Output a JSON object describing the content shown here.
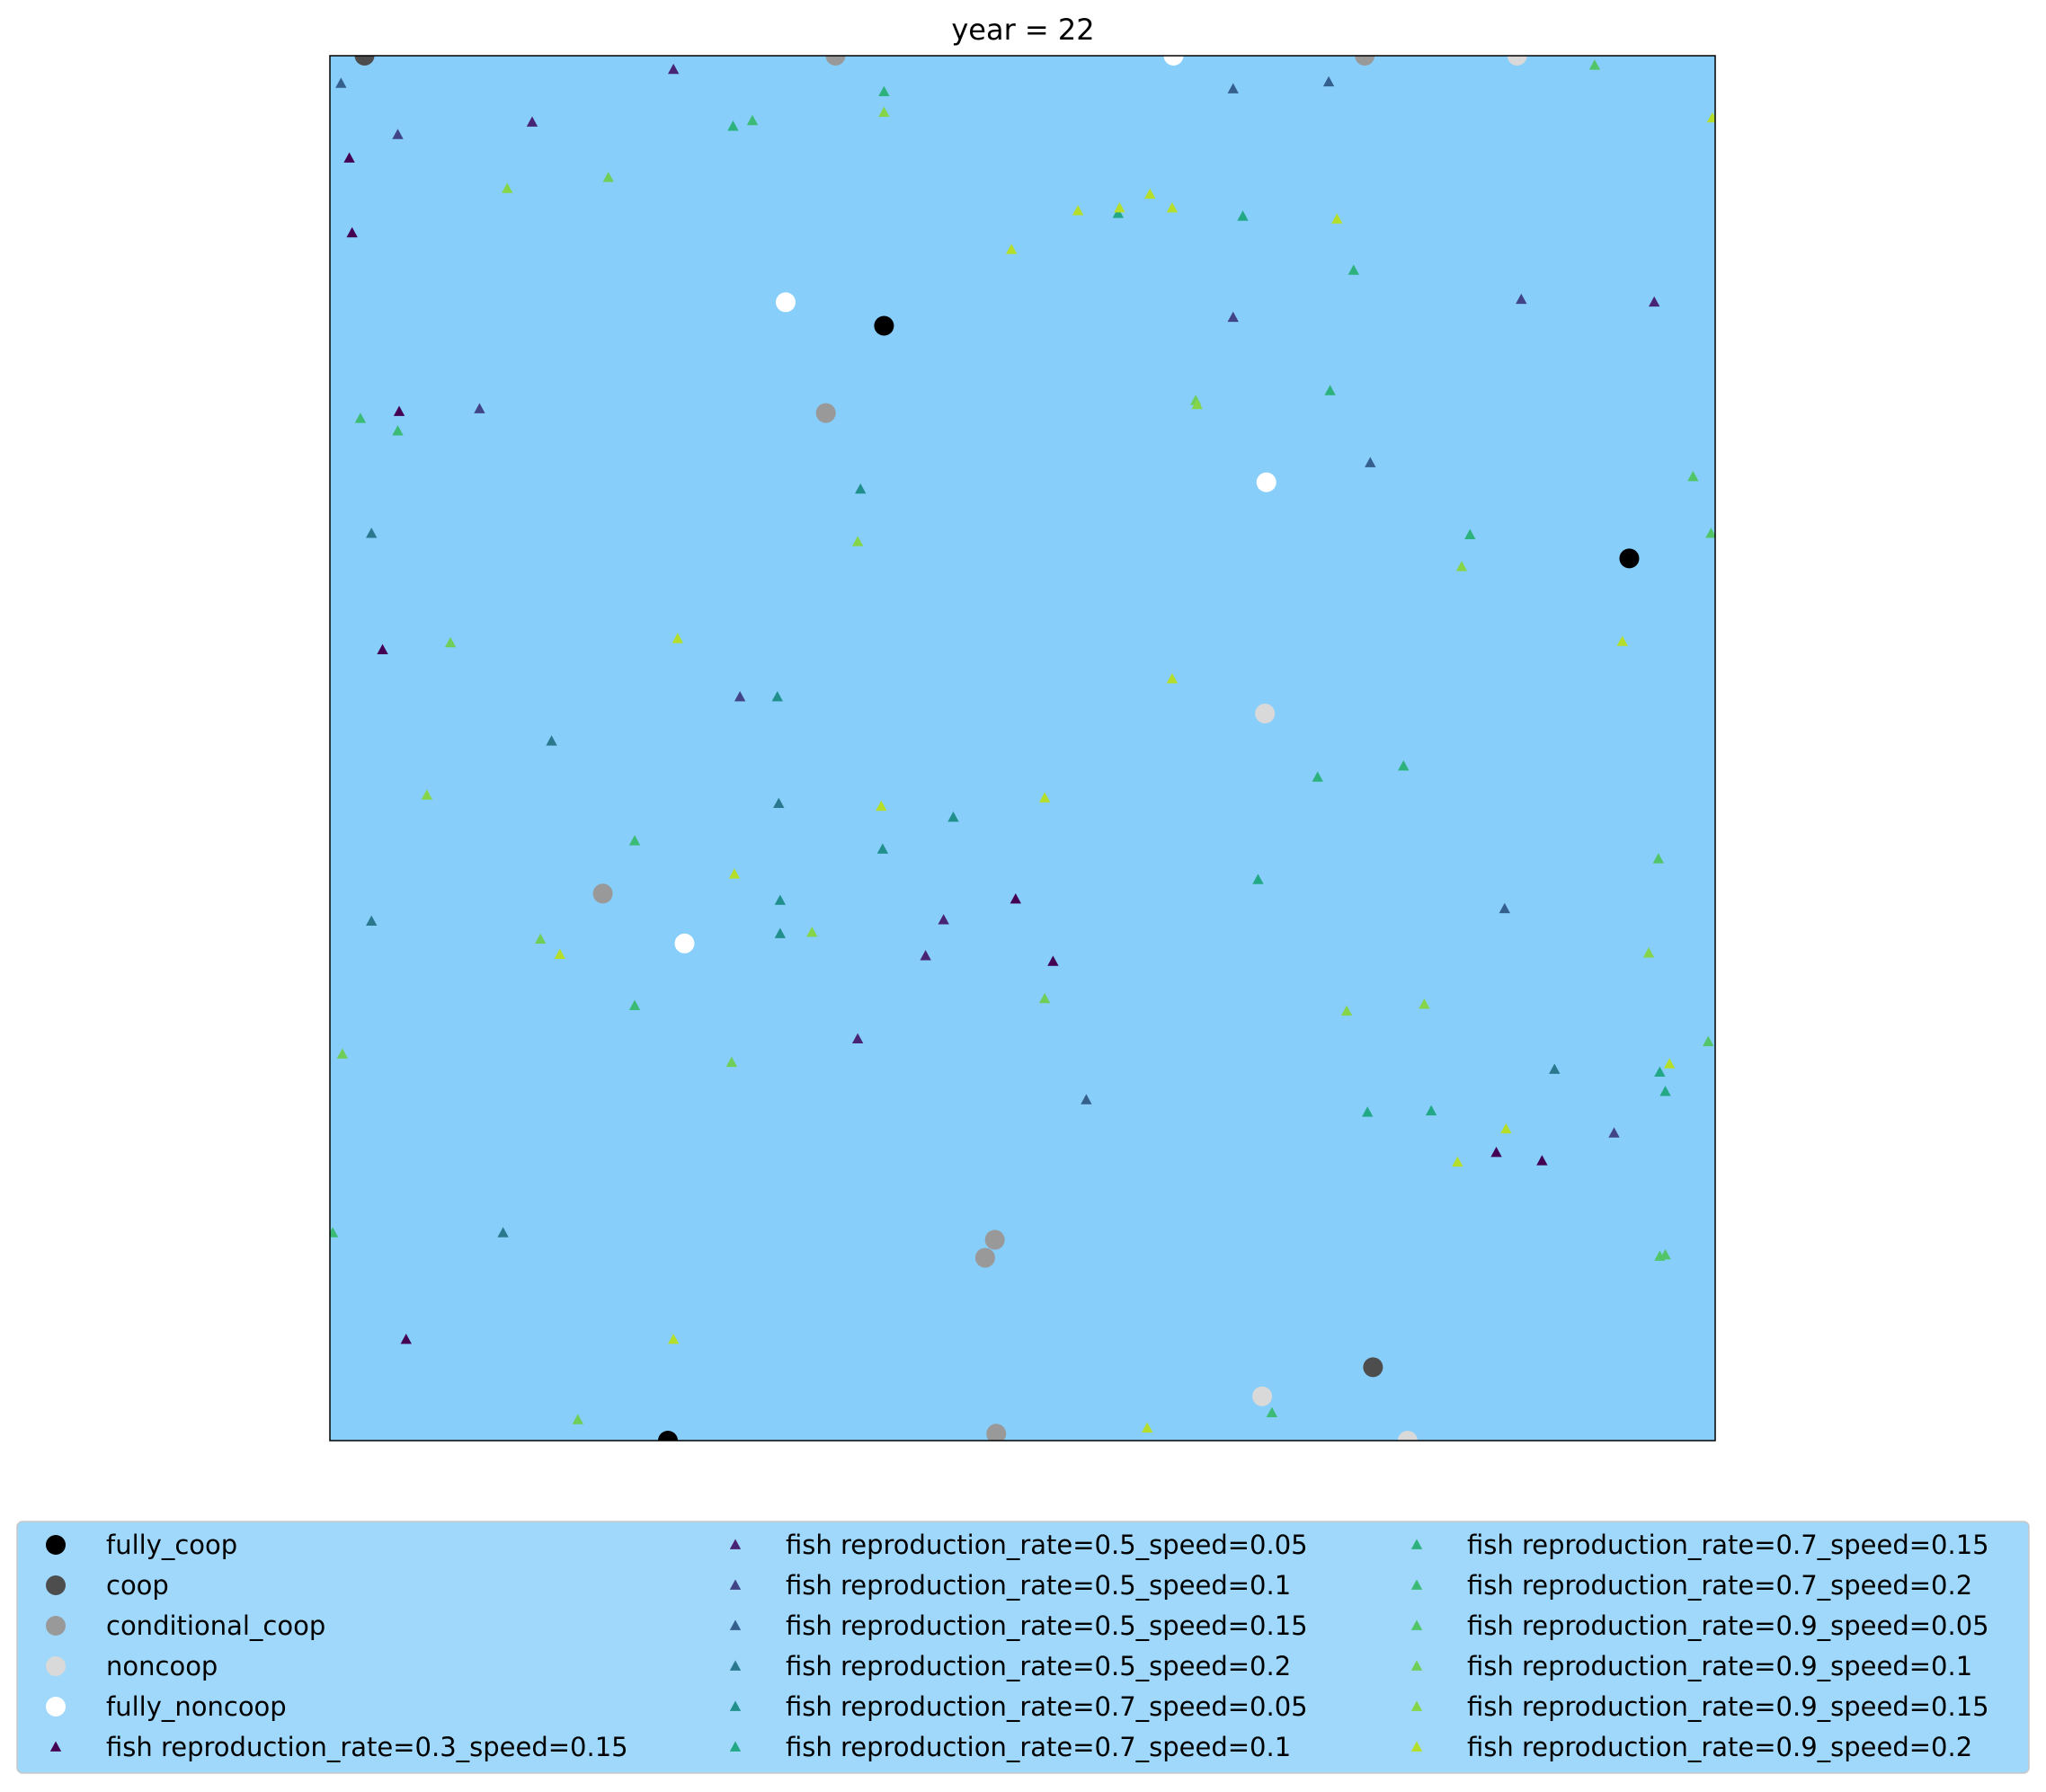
{
  "chart_data": {
    "type": "scatter",
    "title": "year = 22",
    "xlabel": "",
    "ylabel": "",
    "xlim": [
      0,
      100
    ],
    "ylim": [
      0,
      100
    ],
    "axes_ticks": false,
    "grid": false,
    "plot_background": "#87CEFA",
    "legend": {
      "placement": "bottom",
      "columns": 3,
      "background": "#87CEFA"
    },
    "series": [
      {
        "name": "fully_coop",
        "marker": "circle",
        "color": "#000000",
        "points": [
          [
            40.0,
            80.5
          ],
          [
            93.8,
            63.7
          ],
          [
            24.4,
            0.0
          ]
        ]
      },
      {
        "name": "coop",
        "marker": "circle",
        "color": "#4d4d4d",
        "points": [
          [
            2.5,
            100.0
          ],
          [
            75.3,
            5.3
          ]
        ]
      },
      {
        "name": "conditional_coop",
        "marker": "circle",
        "color": "#999999",
        "points": [
          [
            36.5,
            100.0
          ],
          [
            74.7,
            100.0
          ],
          [
            35.8,
            74.2
          ],
          [
            19.7,
            39.5
          ],
          [
            48.0,
            14.5
          ],
          [
            47.3,
            13.2
          ],
          [
            48.1,
            0.5
          ]
        ]
      },
      {
        "name": "noncoop",
        "marker": "circle",
        "color": "#d9d9d9",
        "points": [
          [
            85.7,
            100.0
          ],
          [
            67.5,
            52.5
          ],
          [
            67.3,
            3.2
          ],
          [
            77.8,
            0.0
          ]
        ]
      },
      {
        "name": "fully_noncoop",
        "marker": "circle",
        "color": "#ffffff",
        "points": [
          [
            60.9,
            100.0
          ],
          [
            32.9,
            82.2
          ],
          [
            67.6,
            69.2
          ],
          [
            25.6,
            35.9
          ]
        ]
      },
      {
        "name": "fish reproduction_rate=0.3_speed=0.15",
        "marker": "triangle",
        "color": "#440154",
        "points": [
          [
            1.4,
            92.6
          ],
          [
            1.6,
            87.2
          ],
          [
            5.0,
            74.3
          ],
          [
            3.8,
            57.1
          ],
          [
            49.5,
            39.1
          ],
          [
            52.2,
            34.6
          ],
          [
            84.2,
            20.8
          ],
          [
            87.5,
            20.2
          ],
          [
            5.5,
            7.3
          ]
        ]
      },
      {
        "name": "fish reproduction_rate=0.5_speed=0.05",
        "marker": "triangle",
        "color": "#482475",
        "points": [
          [
            24.8,
            99.0
          ],
          [
            14.6,
            95.2
          ],
          [
            95.6,
            82.2
          ],
          [
            44.3,
            37.6
          ],
          [
            43.0,
            35.0
          ],
          [
            38.1,
            29.0
          ]
        ]
      },
      {
        "name": "fish reproduction_rate=0.5_speed=0.1",
        "marker": "triangle",
        "color": "#414487",
        "points": [
          [
            4.9,
            94.3
          ],
          [
            65.2,
            81.1
          ],
          [
            10.8,
            74.5
          ],
          [
            29.6,
            53.7
          ],
          [
            86.0,
            82.4
          ],
          [
            92.7,
            22.2
          ]
        ]
      },
      {
        "name": "fish reproduction_rate=0.5_speed=0.15",
        "marker": "triangle",
        "color": "#355f8d",
        "points": [
          [
            0.8,
            98.0
          ],
          [
            65.2,
            97.6
          ],
          [
            72.1,
            98.1
          ],
          [
            75.1,
            70.6
          ],
          [
            84.8,
            38.4
          ],
          [
            54.6,
            24.6
          ]
        ]
      },
      {
        "name": "fish reproduction_rate=0.5_speed=0.2",
        "marker": "triangle",
        "color": "#2a788e",
        "points": [
          [
            3.0,
            65.5
          ],
          [
            16.0,
            50.5
          ],
          [
            3.0,
            37.5
          ],
          [
            32.4,
            46.0
          ],
          [
            12.5,
            15.0
          ],
          [
            88.4,
            26.8
          ]
        ]
      },
      {
        "name": "fish reproduction_rate=0.7_speed=0.05",
        "marker": "triangle",
        "color": "#21908d",
        "points": [
          [
            38.3,
            68.7
          ],
          [
            32.3,
            53.7
          ],
          [
            32.5,
            39.0
          ],
          [
            32.5,
            36.6
          ],
          [
            39.9,
            42.7
          ],
          [
            45.0,
            45.0
          ]
        ]
      },
      {
        "name": "fish reproduction_rate=0.7_speed=0.1",
        "marker": "triangle",
        "color": "#22a884",
        "points": [
          [
            56.9,
            88.6
          ],
          [
            65.9,
            88.4
          ],
          [
            67.0,
            40.5
          ],
          [
            74.9,
            23.7
          ],
          [
            79.5,
            23.8
          ],
          [
            96.0,
            26.6
          ],
          [
            96.4,
            25.2
          ]
        ]
      },
      {
        "name": "fish reproduction_rate=0.7_speed=0.15",
        "marker": "triangle",
        "color": "#2db27d",
        "points": [
          [
            40.0,
            97.4
          ],
          [
            29.1,
            94.9
          ],
          [
            73.9,
            84.5
          ],
          [
            72.2,
            75.8
          ],
          [
            82.3,
            65.4
          ],
          [
            77.5,
            48.7
          ],
          [
            71.3,
            47.9
          ]
        ]
      },
      {
        "name": "fish reproduction_rate=0.7_speed=0.2",
        "marker": "triangle",
        "color": "#3bbb75",
        "points": [
          [
            30.5,
            95.3
          ],
          [
            2.2,
            73.8
          ],
          [
            4.9,
            72.9
          ],
          [
            22.0,
            43.3
          ],
          [
            22.0,
            31.4
          ],
          [
            68.0,
            2.0
          ],
          [
            0.2,
            15.0
          ]
        ]
      },
      {
        "name": "fish reproduction_rate=0.9_speed=0.05",
        "marker": "triangle",
        "color": "#52c569",
        "points": [
          [
            91.3,
            99.3
          ],
          [
            98.4,
            69.6
          ],
          [
            99.7,
            65.5
          ],
          [
            95.9,
            42.0
          ],
          [
            99.5,
            28.8
          ],
          [
            96.0,
            13.3
          ],
          [
            96.4,
            13.4
          ]
        ]
      },
      {
        "name": "fish reproduction_rate=0.9_speed=0.1",
        "marker": "triangle",
        "color": "#6ece58",
        "points": [
          [
            20.1,
            91.2
          ],
          [
            62.5,
            75.1
          ],
          [
            8.7,
            57.6
          ],
          [
            15.2,
            36.2
          ],
          [
            0.9,
            27.9
          ],
          [
            29.0,
            27.3
          ],
          [
            17.9,
            1.5
          ],
          [
            51.6,
            31.9
          ]
        ]
      },
      {
        "name": "fish reproduction_rate=0.9_speed=0.15",
        "marker": "triangle",
        "color": "#86d549",
        "points": [
          [
            12.8,
            90.4
          ],
          [
            40.0,
            95.9
          ],
          [
            62.6,
            74.8
          ],
          [
            38.1,
            64.9
          ],
          [
            81.7,
            63.1
          ],
          [
            7.0,
            46.6
          ],
          [
            34.8,
            36.7
          ],
          [
            79.0,
            31.5
          ],
          [
            73.4,
            31.0
          ],
          [
            95.2,
            35.2
          ]
        ]
      },
      {
        "name": "fish reproduction_rate=0.9_speed=0.2",
        "marker": "triangle",
        "color": "#b5de2b",
        "points": [
          [
            99.8,
            95.5
          ],
          [
            49.2,
            86.0
          ],
          [
            72.7,
            88.2
          ],
          [
            54.0,
            88.8
          ],
          [
            57.0,
            89.0
          ],
          [
            59.2,
            90.0
          ],
          [
            60.8,
            89.0
          ],
          [
            93.3,
            57.7
          ],
          [
            60.8,
            55.0
          ],
          [
            25.1,
            57.9
          ],
          [
            39.8,
            45.8
          ],
          [
            51.6,
            46.4
          ],
          [
            16.6,
            35.1
          ],
          [
            29.2,
            40.9
          ],
          [
            59.0,
            0.9
          ],
          [
            24.8,
            7.3
          ],
          [
            96.7,
            27.2
          ],
          [
            81.4,
            20.1
          ],
          [
            84.9,
            22.5
          ]
        ]
      }
    ]
  }
}
